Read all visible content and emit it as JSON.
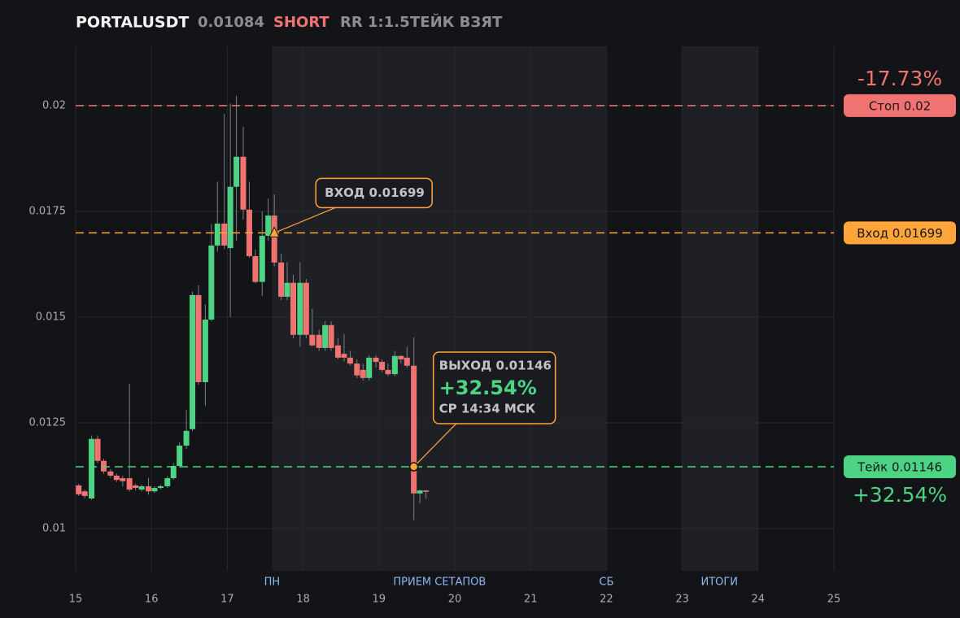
{
  "header": {
    "symbol": "PORTALUSDT",
    "price": "0.01084",
    "side": "SHORT",
    "rr": "RR 1:1.5",
    "status": "ТЕЙК ВЗЯТ"
  },
  "chart_data": {
    "type": "candlestick",
    "xlim": [
      15,
      25
    ],
    "ylim": [
      0.009,
      0.0214
    ],
    "xticks": [
      15,
      16,
      17,
      18,
      19,
      20,
      21,
      22,
      23,
      24,
      25
    ],
    "yticks": [
      0.01,
      0.0125,
      0.015,
      0.0175,
      0.02
    ],
    "grid": true,
    "up_color": "#4cd484",
    "down_color": "#f07371",
    "x": [
      15.04,
      15.12,
      15.21,
      15.29,
      15.37,
      15.46,
      15.54,
      15.62,
      15.71,
      15.79,
      15.87,
      15.96,
      16.04,
      16.12,
      16.21,
      16.29,
      16.37,
      16.46,
      16.54,
      16.62,
      16.71,
      16.79,
      16.87,
      16.96,
      17.04,
      17.12,
      17.21,
      17.29,
      17.37,
      17.46,
      17.54,
      17.62,
      17.71,
      17.79,
      17.87,
      17.96,
      18.04,
      18.12,
      18.21,
      18.29,
      18.37,
      18.46,
      18.54,
      18.62,
      18.71,
      18.79,
      18.87,
      18.96,
      19.04,
      19.12,
      19.21,
      19.29,
      19.37,
      19.46,
      19.54,
      19.62
    ],
    "open": [
      0.01102,
      0.01088,
      0.01071,
      0.01212,
      0.0116,
      0.01135,
      0.01125,
      0.01119,
      0.01119,
      0.01102,
      0.01092,
      0.011,
      0.01088,
      0.01096,
      0.011,
      0.01119,
      0.01148,
      0.01196,
      0.01235,
      0.01552,
      0.01346,
      0.01494,
      0.01669,
      0.01721,
      0.01663,
      0.01808,
      0.01879,
      0.01754,
      0.01644,
      0.01583,
      0.01692,
      0.0174,
      0.01629,
      0.01548,
      0.01581,
      0.01458,
      0.01581,
      0.01458,
      0.01458,
      0.01427,
      0.01481,
      0.01433,
      0.01413,
      0.01404,
      0.0139,
      0.01375,
      0.01356,
      0.01404,
      0.01394,
      0.01375,
      0.01365,
      0.01408,
      0.01404,
      0.01385,
      0.01083,
      0.0109
    ],
    "high": [
      0.01106,
      0.01092,
      0.0122,
      0.0122,
      0.01165,
      0.0114,
      0.0113,
      0.01125,
      0.01342,
      0.01106,
      0.01104,
      0.0112,
      0.011,
      0.01104,
      0.01124,
      0.01155,
      0.01204,
      0.0128,
      0.0156,
      0.01575,
      0.0153,
      0.0172,
      0.0182,
      0.0198,
      0.02005,
      0.02023,
      0.0195,
      0.0182,
      0.0166,
      0.0175,
      0.0178,
      0.0179,
      0.0165,
      0.0163,
      0.016,
      0.0163,
      0.0159,
      0.0152,
      0.0147,
      0.0149,
      0.0149,
      0.0145,
      0.0146,
      0.0142,
      0.014,
      0.0139,
      0.0141,
      0.0141,
      0.014,
      0.0139,
      0.0142,
      0.0141,
      0.0143,
      0.01452,
      0.01092,
      0.0109
    ],
    "low": [
      0.01077,
      0.01071,
      0.01068,
      0.01155,
      0.0113,
      0.0112,
      0.0111,
      0.011,
      0.01088,
      0.0109,
      0.01088,
      0.0108,
      0.01084,
      0.01092,
      0.01096,
      0.01115,
      0.01144,
      0.01188,
      0.0123,
      0.0134,
      0.0129,
      0.0149,
      0.01655,
      0.0166,
      0.015,
      0.0168,
      0.0173,
      0.0164,
      0.0158,
      0.0155,
      0.0168,
      0.0162,
      0.0154,
      0.0154,
      0.0145,
      0.0143,
      0.0145,
      0.0143,
      0.0142,
      0.0142,
      0.0142,
      0.014,
      0.01395,
      0.01385,
      0.01355,
      0.0135,
      0.0135,
      0.0138,
      0.0137,
      0.0136,
      0.0136,
      0.0139,
      0.0138,
      0.0102,
      0.0106,
      0.0107
    ],
    "close": [
      0.01081,
      0.01077,
      0.01212,
      0.0116,
      0.01135,
      0.01125,
      0.01115,
      0.01112,
      0.01092,
      0.01096,
      0.011,
      0.01088,
      0.01096,
      0.011,
      0.01119,
      0.01148,
      0.01196,
      0.01231,
      0.01552,
      0.01346,
      0.01494,
      0.01669,
      0.01721,
      0.01669,
      0.01808,
      0.01879,
      0.01754,
      0.01644,
      0.01583,
      0.01692,
      0.0174,
      0.01629,
      0.01548,
      0.01581,
      0.01458,
      0.01581,
      0.01458,
      0.01433,
      0.01427,
      0.01481,
      0.01427,
      0.01404,
      0.01404,
      0.0139,
      0.01362,
      0.01356,
      0.01404,
      0.01394,
      0.01375,
      0.01365,
      0.01408,
      0.014,
      0.01385,
      0.01083,
      0.0109,
      0.01087
    ],
    "bands": [
      {
        "start": 17.59,
        "end": 22
      },
      {
        "start": 23,
        "end": 24
      }
    ],
    "session_labels": [
      {
        "x": 17.59,
        "label": "ПН"
      },
      {
        "x": 19.8,
        "label": "ПРИЕМ СЕТАПОВ"
      },
      {
        "x": 22,
        "label": "СБ"
      },
      {
        "x": 23.49,
        "label": "ИТОГИ"
      }
    ],
    "levels": [
      {
        "label": "Стоп 0.02",
        "value": 0.02,
        "color": "#f07371",
        "change": "-17.73%"
      },
      {
        "label": "Вход 0.01699",
        "value": 0.01699,
        "color": "#ffa53a"
      },
      {
        "label": "Тейк 0.01146",
        "value": 0.01146,
        "color": "#4cd484",
        "change": "+32.54%"
      }
    ],
    "entry": {
      "x": 17.62,
      "y": 0.01699,
      "label": "ВХОД 0.01699"
    },
    "exit": {
      "x": 19.46,
      "y": 0.01146,
      "label": "ВЫХОД 0.01146",
      "result": "+32.54%",
      "time": "СР 14:34 МСК"
    }
  }
}
